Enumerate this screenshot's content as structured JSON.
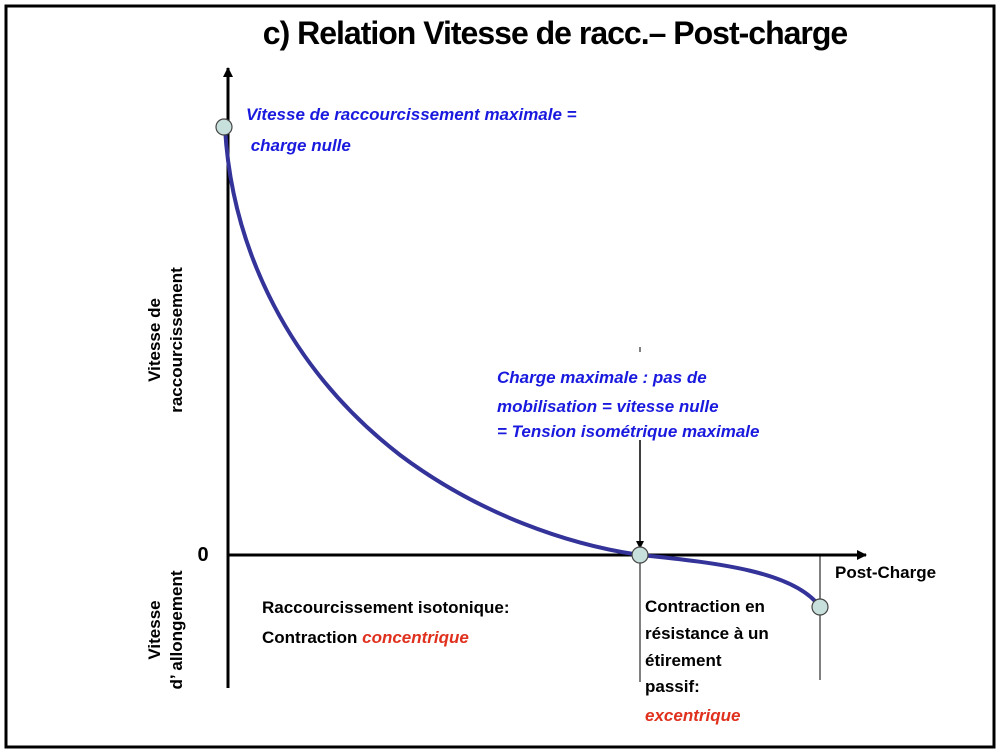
{
  "title": "c) Relation Vitesse de racc.– Post-charge",
  "y_axis": {
    "upper": [
      "Vitesse de",
      "raccourcissement"
    ],
    "lower": [
      "Vitesse",
      "d’ allongement"
    ],
    "zero": "0"
  },
  "x_axis": {
    "label": "Post-Charge"
  },
  "annotations": {
    "max_speed": [
      "Vitesse de raccourcissement maximale =",
      " charge nulle"
    ],
    "max_load": [
      "Charge maximale : pas de",
      "mobilisation = vitesse nulle",
      "= Tension isométrique maximale"
    ],
    "concentric": {
      "line1": "Raccourcissement isotonique:",
      "line2": "Contraction ",
      "emphasis": "concentrique"
    },
    "eccentric": {
      "lines": [
        "Contraction en",
        "résistance à un",
        "étirement",
        "passif:"
      ],
      "emphasis": "excentrique"
    }
  }
}
